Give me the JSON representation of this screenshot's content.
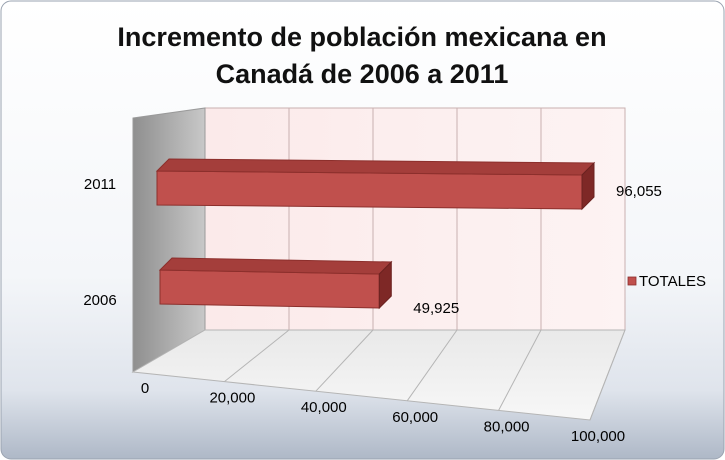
{
  "chart_data": {
    "type": "bar",
    "orientation": "horizontal",
    "style": "3d",
    "title_lines": [
      "Incremento de población mexicana en",
      "Canadá de 2006 a 2011"
    ],
    "categories": [
      "2006",
      "2011"
    ],
    "series": [
      {
        "name": "TOTALES",
        "values": [
          49925,
          96055
        ],
        "data_labels": [
          "49,925",
          "96,055"
        ],
        "color": "#C0504D"
      }
    ],
    "xlim": [
      0,
      100000
    ],
    "x_ticks": [
      0,
      20000,
      40000,
      60000,
      80000,
      100000
    ],
    "x_tick_labels": [
      "0",
      "20,000",
      "40,000",
      "60,000",
      "80,000",
      "100,000"
    ],
    "grid": true,
    "legend_position": "right"
  }
}
